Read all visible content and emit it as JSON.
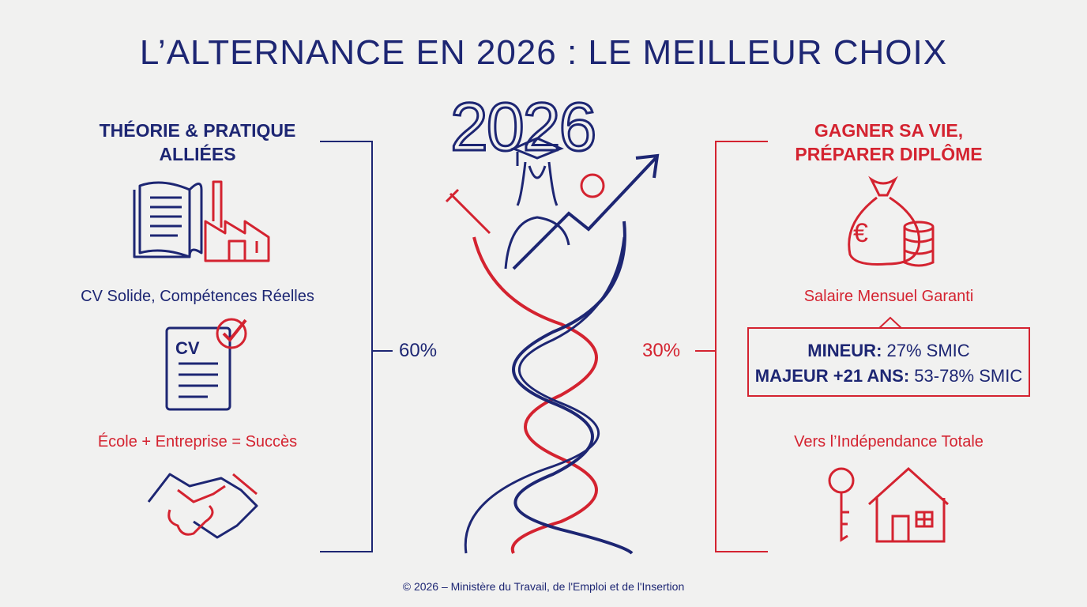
{
  "title": "L’ALTERNANCE EN 2026 : LE MEILLEUR CHOIX",
  "year_graphic": "2026",
  "left": {
    "heading": [
      "THÉORIE & PRATIQUE",
      "ALLIÉES"
    ],
    "items": [
      {
        "icon": "book-factory-icon",
        "label": ""
      },
      {
        "icon": "cv-check-icon",
        "label": "CV Solide, Compétences Réelles",
        "cv_text": "CV"
      },
      {
        "icon": "handshake-icon",
        "label": "École + Entreprise = Succès"
      }
    ],
    "percent": "60%"
  },
  "right": {
    "heading": [
      "GAGNER SA VIE,",
      "PRÉPARER DIPLÔME"
    ],
    "salary_label": "Salaire Mensuel Garanti",
    "money_icon": "money-bag-euro-icon",
    "euro": "€",
    "salary_box": {
      "minor_label": "MINEUR:",
      "minor_value": "27% SMIC",
      "major_label": "MAJEUR +21 ANS:",
      "major_value": "53-78% SMIC"
    },
    "independence_label": "Vers l’Indépendance Totale",
    "independence_icon": "key-house-icon",
    "percent": "30%"
  },
  "footer": "© 2026 – Ministère du Travail, de l'Emploi et de l'Insertion",
  "colors": {
    "navy": "#1d2673",
    "red": "#d42330",
    "background": "#f1f1f0"
  }
}
